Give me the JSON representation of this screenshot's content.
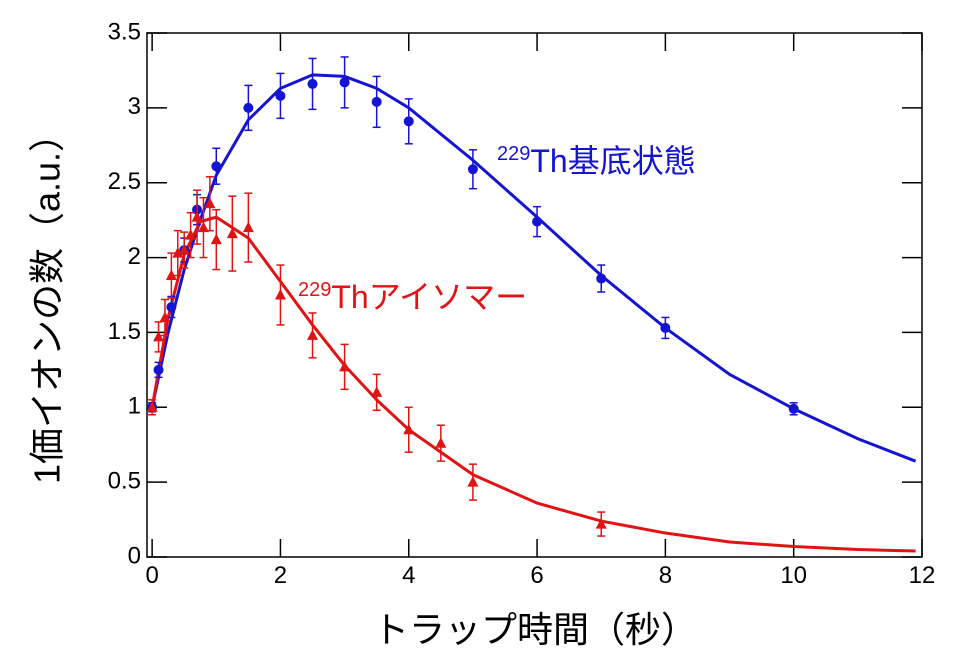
{
  "chart_data": {
    "type": "scatter",
    "xlabel": "トラップ時間（秒）",
    "ylabel": "1価イオンの数（a.u.）",
    "xlim": [
      -0.08,
      12
    ],
    "ylim": [
      0,
      3.5
    ],
    "xticks": [
      0,
      2,
      4,
      6,
      8,
      10,
      12
    ],
    "yticks": [
      0,
      0.5,
      1,
      1.5,
      2,
      2.5,
      3,
      3.5
    ],
    "series": [
      {
        "color": "#1414d2",
        "marker": "circle",
        "x": [
          0,
          0.1,
          0.3,
          0.5,
          0.7,
          1,
          1.5,
          2,
          2.5,
          3,
          3.5,
          4,
          5,
          6,
          7,
          8,
          10
        ],
        "values": [
          1.0,
          1.25,
          1.67,
          2.05,
          2.32,
          2.61,
          3.0,
          3.08,
          3.16,
          3.17,
          3.04,
          2.91,
          2.59,
          2.24,
          1.86,
          1.53,
          0.99
        ],
        "errors": [
          0.03,
          0.05,
          0.07,
          0.08,
          0.1,
          0.12,
          0.15,
          0.15,
          0.17,
          0.17,
          0.17,
          0.15,
          0.13,
          0.1,
          0.09,
          0.07,
          0.04
        ]
      },
      {
        "color": "#e01414",
        "marker": "triangle",
        "x": [
          0,
          0.1,
          0.2,
          0.3,
          0.4,
          0.5,
          0.6,
          0.7,
          0.8,
          0.9,
          1.0,
          1.25,
          1.5,
          2,
          2.5,
          3,
          3.5,
          4,
          4.5,
          5,
          7
        ],
        "values": [
          1.0,
          1.47,
          1.6,
          1.88,
          2.03,
          2.05,
          2.15,
          2.27,
          2.2,
          2.36,
          2.12,
          2.16,
          2.2,
          1.75,
          1.48,
          1.27,
          1.1,
          0.85,
          0.76,
          0.5,
          0.22
        ],
        "errors": [
          0.05,
          0.1,
          0.12,
          0.15,
          0.15,
          0.12,
          0.15,
          0.18,
          0.2,
          0.18,
          0.2,
          0.25,
          0.23,
          0.2,
          0.15,
          0.15,
          0.12,
          0.15,
          0.12,
          0.12,
          0.08
        ]
      }
    ],
    "fits": [
      {
        "color": "#1414d2",
        "x": [
          0,
          0.25,
          0.5,
          0.75,
          1,
          1.5,
          2,
          2.5,
          3,
          3.5,
          4,
          5,
          6,
          7,
          8,
          9,
          10,
          11,
          11.9
        ],
        "values": [
          1.0,
          1.5,
          1.92,
          2.25,
          2.55,
          2.92,
          3.13,
          3.22,
          3.21,
          3.13,
          3.0,
          2.65,
          2.27,
          1.88,
          1.53,
          1.22,
          0.99,
          0.79,
          0.64
        ]
      },
      {
        "color": "#e01414",
        "x": [
          0,
          0.25,
          0.5,
          0.75,
          1,
          1.5,
          2,
          2.5,
          3,
          3.5,
          4,
          5,
          6,
          7,
          8,
          9,
          10,
          11,
          11.9
        ],
        "values": [
          1.0,
          1.6,
          2.02,
          2.24,
          2.27,
          2.13,
          1.84,
          1.55,
          1.28,
          1.05,
          0.85,
          0.55,
          0.36,
          0.24,
          0.16,
          0.1,
          0.07,
          0.05,
          0.04
        ]
      }
    ],
    "annotations": [
      {
        "sup": "229",
        "text": "Th基底状態",
        "color": "#1414d2"
      },
      {
        "sup": "229",
        "text": "Thアイソマー",
        "color": "#e01414"
      }
    ]
  }
}
